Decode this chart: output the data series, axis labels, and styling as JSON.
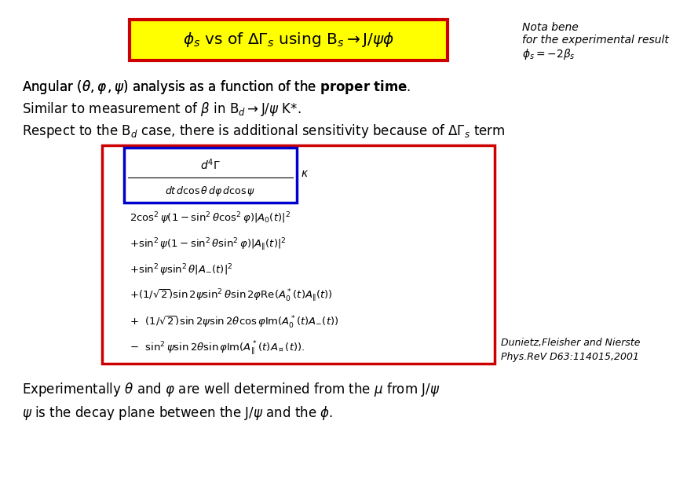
{
  "bg_color": "#ffffff",
  "title_box_text": "$\\phi_s$ vs of $\\Delta\\Gamma_s$ using $\\mathrm{B}_s\\rightarrow\\mathrm{J}/\\psi\\phi$",
  "title_box_fill": "#ffff00",
  "title_box_edge": "#cc0000",
  "nota_bene_line1": "Nota bene",
  "nota_bene_line2": "for the experimental result",
  "nota_bene_line3": "$\\phi_s = -2\\beta_s$",
  "eq_lines": [
    "$2\\cos^2\\psi(1-\\sin^2\\theta\\cos^2\\varphi)|A_0(t)|^2$",
    "$+\\sin^2\\psi(1-\\sin^2\\theta\\sin^2\\varphi)|A_{\\|}(t)|^2$",
    "$+\\sin^2\\psi\\sin^2\\theta|A_{-}(t)|^2$",
    "$+(1/\\sqrt{2})\\sin 2\\psi\\sin^2\\theta\\sin 2\\varphi\\mathrm{Re}(A_0^*(t)A_{\\|}(t))$",
    "$+\\ \\ (1/\\sqrt{2})\\sin 2\\psi\\sin 2\\theta\\cos\\varphi\\mathrm{Im}(A_0^*(t)A_{-}(t))$",
    "$-\\ \\ \\sin^2\\psi\\sin 2\\theta\\sin\\varphi\\mathrm{Im}(A_{\\|}^*(t)A_{\\perp}(t)).$"
  ],
  "ref_line1": "Dunietz,Fleisher and Nierste",
  "ref_line2": "Phys.ReV D63:114015,2001",
  "bottom_line1": "Experimentally $\\theta$ and $\\varphi$ are well determined from the $\\mu$ from J/$\\psi$",
  "bottom_line2": "$\\psi$ is the decay plane between the J/$\\psi$ and the $\\phi$."
}
